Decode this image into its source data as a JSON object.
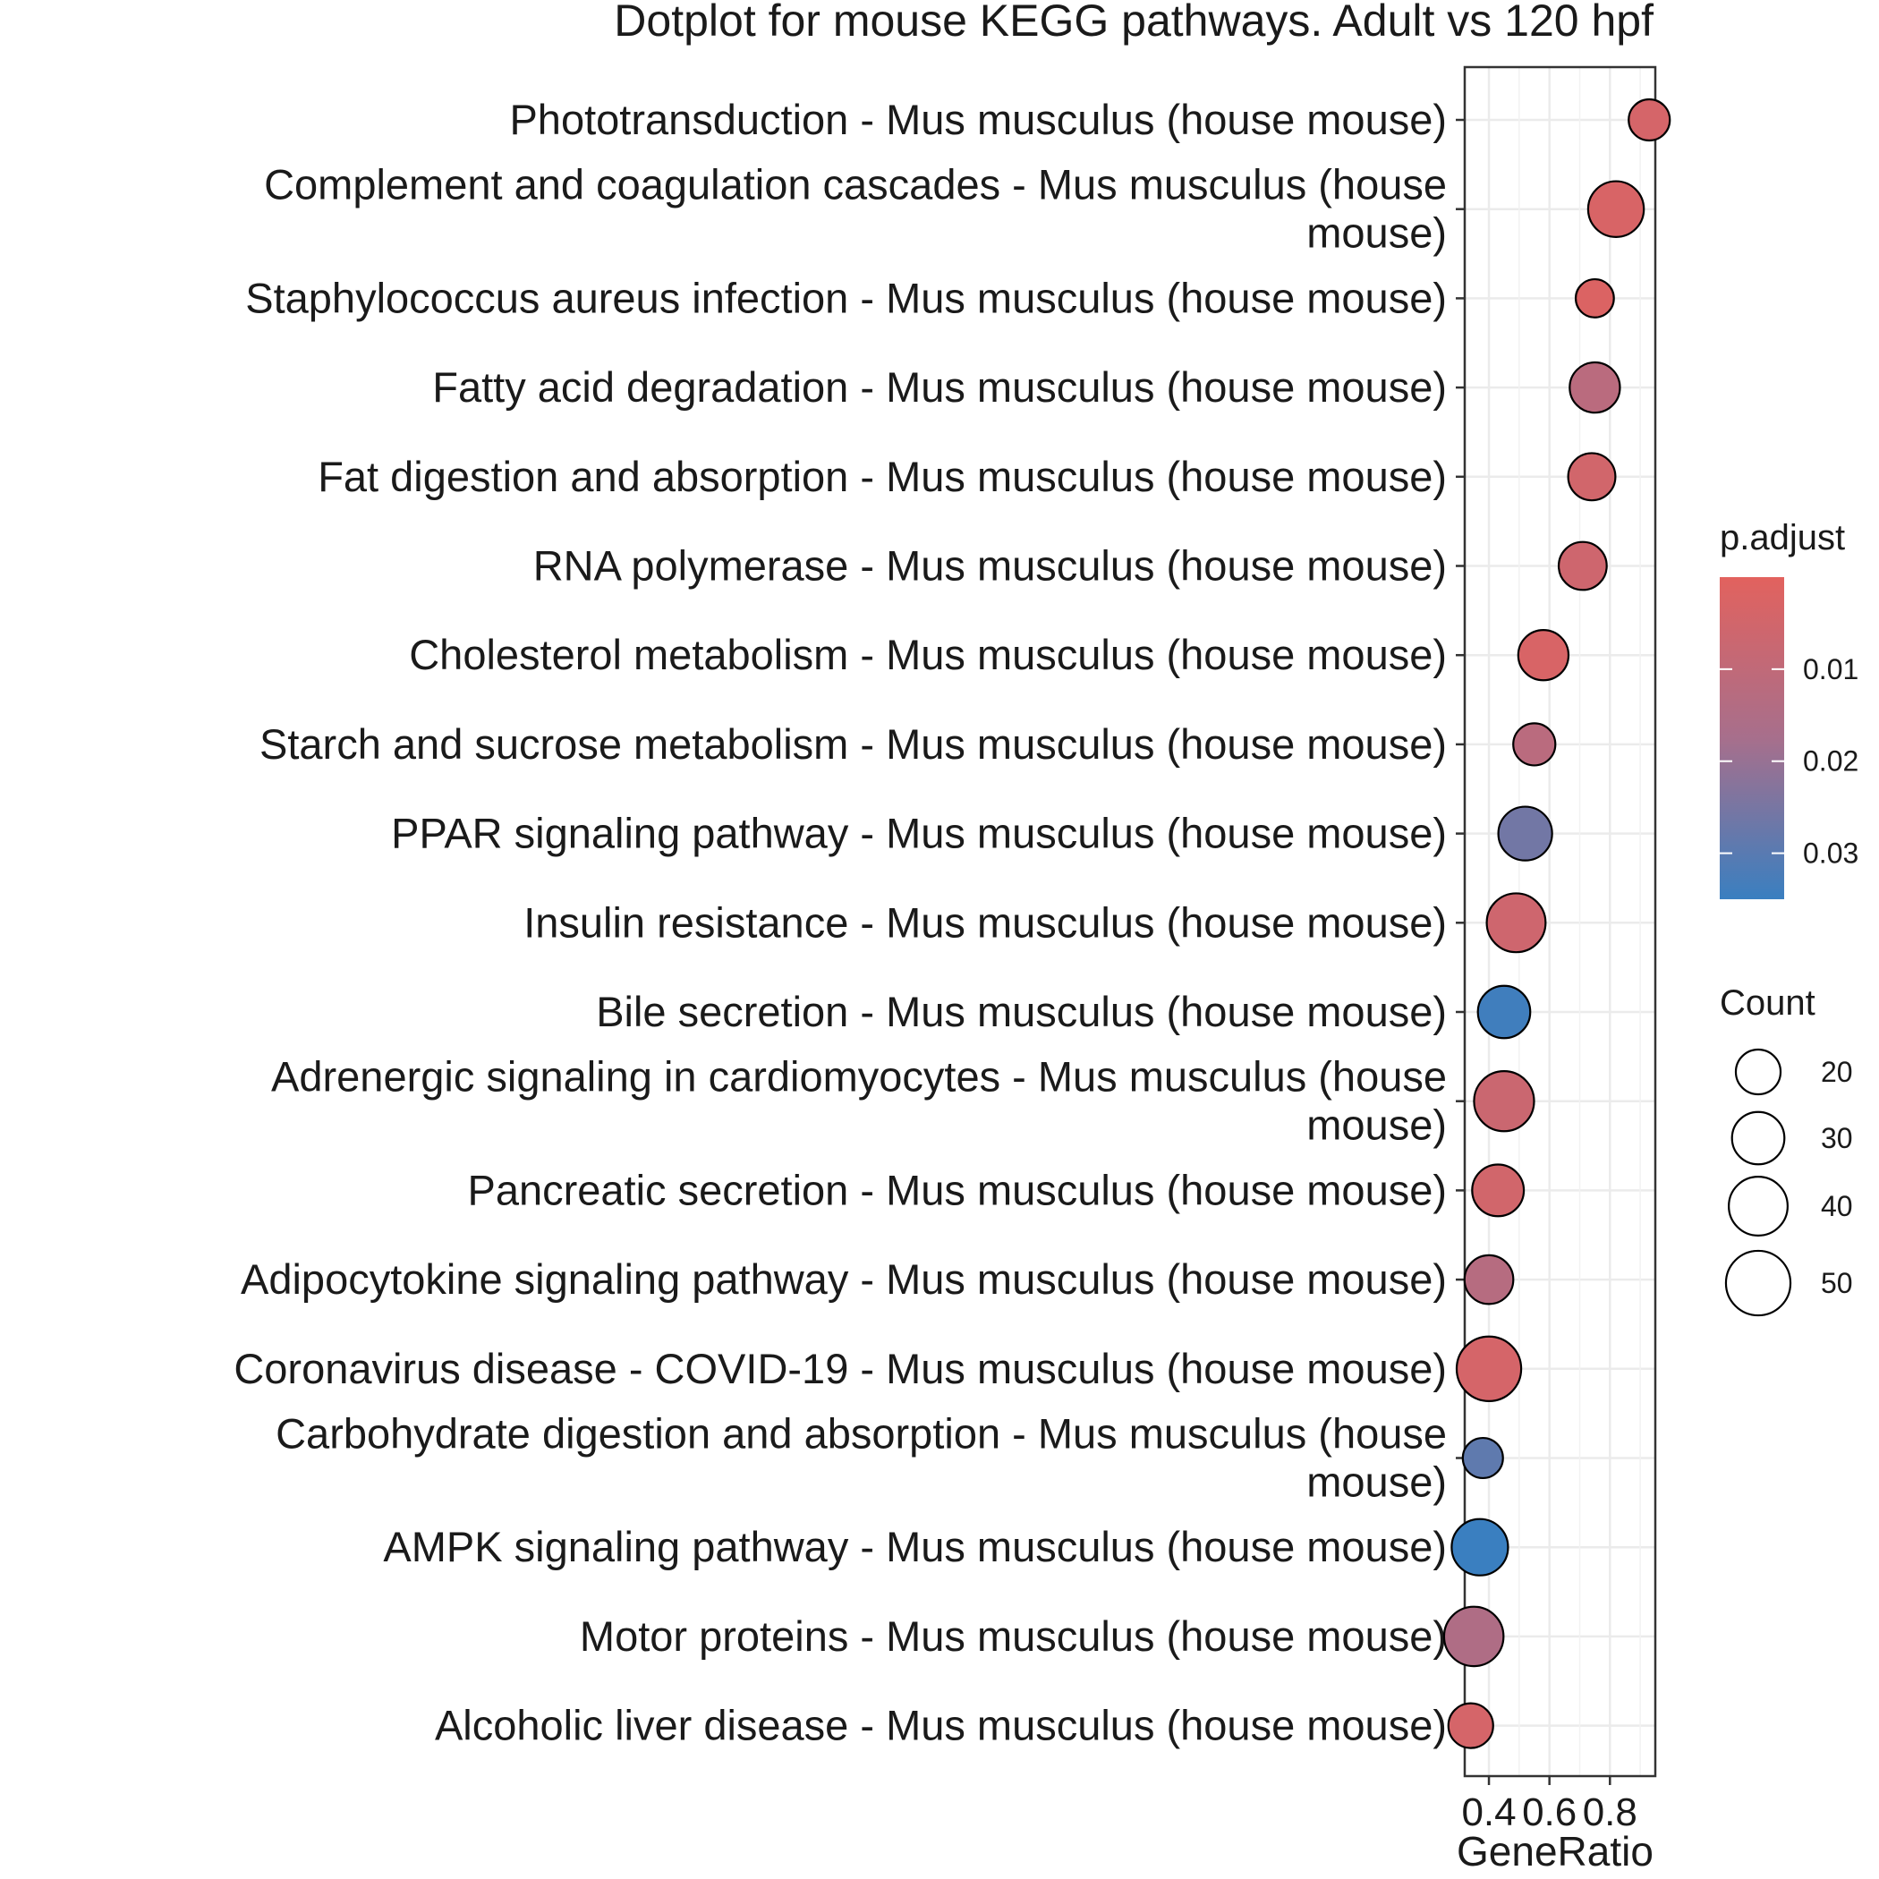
{
  "chart_data": {
    "type": "scatter",
    "title": "Dotplot for mouse KEGG pathways. Adult vs 120 hpf",
    "xlabel": "GeneRatio",
    "ylabel": "",
    "xlim": [
      0.32,
      0.95
    ],
    "xticks": [
      0.4,
      0.6,
      0.8
    ],
    "xtick_labels": [
      "0.4",
      "0.6",
      "0.8"
    ],
    "grid": true,
    "legend_position": "right",
    "color_legend": {
      "title": "p.adjust",
      "domain": [
        0.0,
        0.035
      ],
      "ticks": [
        0.01,
        0.02,
        0.03
      ],
      "tick_labels": [
        "0.01",
        "0.02",
        "0.03"
      ],
      "low_color": "#e2625e",
      "high_color": "#3a7fc0"
    },
    "size_legend": {
      "title": "Count",
      "values": [
        20,
        30,
        40,
        50
      ],
      "labels": [
        "20",
        "30",
        "40",
        "50"
      ]
    },
    "categories": [
      "Phototransduction - Mus musculus (house mouse)",
      "Complement and coagulation cascades - Mus musculus (house mouse)",
      "Staphylococcus aureus infection - Mus musculus (house mouse)",
      "Fatty acid degradation - Mus musculus (house mouse)",
      "Fat digestion and absorption - Mus musculus (house mouse)",
      "RNA polymerase - Mus musculus (house mouse)",
      "Cholesterol metabolism - Mus musculus (house mouse)",
      "Starch and sucrose metabolism - Mus musculus (house mouse)",
      "PPAR signaling pathway - Mus musculus (house mouse)",
      "Insulin resistance - Mus musculus (house mouse)",
      "Bile secretion - Mus musculus (house mouse)",
      "Adrenergic signaling in cardiomyocytes - Mus musculus (house mouse)",
      "Pancreatic secretion - Mus musculus (house mouse)",
      "Adipocytokine signaling pathway - Mus musculus (house mouse)",
      "Coronavirus disease - COVID-19 - Mus musculus (house mouse)",
      "Carbohydrate digestion and absorption - Mus musculus (house mouse)",
      "AMPK signaling pathway - Mus musculus (house mouse)",
      "Motor proteins - Mus musculus (house mouse)",
      "Alcoholic liver disease - Mus musculus (house mouse)"
    ],
    "category_lines": [
      [
        "Phototransduction - Mus musculus (house mouse)"
      ],
      [
        "Complement and coagulation cascades - Mus musculus (house",
        "mouse)"
      ],
      [
        "Staphylococcus aureus infection - Mus musculus (house mouse)"
      ],
      [
        "Fatty acid degradation - Mus musculus (house mouse)"
      ],
      [
        "Fat digestion and absorption - Mus musculus (house mouse)"
      ],
      [
        "RNA polymerase - Mus musculus (house mouse)"
      ],
      [
        "Cholesterol metabolism - Mus musculus (house mouse)"
      ],
      [
        "Starch and sucrose metabolism - Mus musculus (house mouse)"
      ],
      [
        "PPAR signaling pathway - Mus musculus (house mouse)"
      ],
      [
        "Insulin resistance - Mus musculus (house mouse)"
      ],
      [
        "Bile secretion - Mus musculus (house mouse)"
      ],
      [
        "Adrenergic signaling in cardiomyocytes - Mus musculus (house",
        "mouse)"
      ],
      [
        "Pancreatic secretion - Mus musculus (house mouse)"
      ],
      [
        "Adipocytokine signaling pathway - Mus musculus (house mouse)"
      ],
      [
        "Coronavirus disease - COVID-19 - Mus musculus (house mouse)"
      ],
      [
        "Carbohydrate digestion and absorption - Mus musculus (house",
        "mouse)"
      ],
      [
        "AMPK signaling pathway - Mus musculus (house mouse)"
      ],
      [
        "Motor proteins - Mus musculus (house mouse)"
      ],
      [
        "Alcoholic liver disease - Mus musculus (house mouse)"
      ]
    ],
    "gene_ratio": [
      0.93,
      0.82,
      0.75,
      0.75,
      0.74,
      0.71,
      0.58,
      0.55,
      0.52,
      0.49,
      0.45,
      0.45,
      0.43,
      0.4,
      0.4,
      0.38,
      0.37,
      0.35,
      0.34
    ],
    "count": [
      16,
      35,
      13,
      27,
      23,
      24,
      27,
      17,
      32,
      40,
      30,
      42,
      29,
      25,
      50,
      15,
      36,
      41,
      20
    ],
    "p_adjust": [
      0.004,
      0.003,
      0.002,
      0.012,
      0.005,
      0.006,
      0.003,
      0.012,
      0.026,
      0.006,
      0.034,
      0.007,
      0.005,
      0.013,
      0.004,
      0.029,
      0.035,
      0.015,
      0.004
    ]
  }
}
